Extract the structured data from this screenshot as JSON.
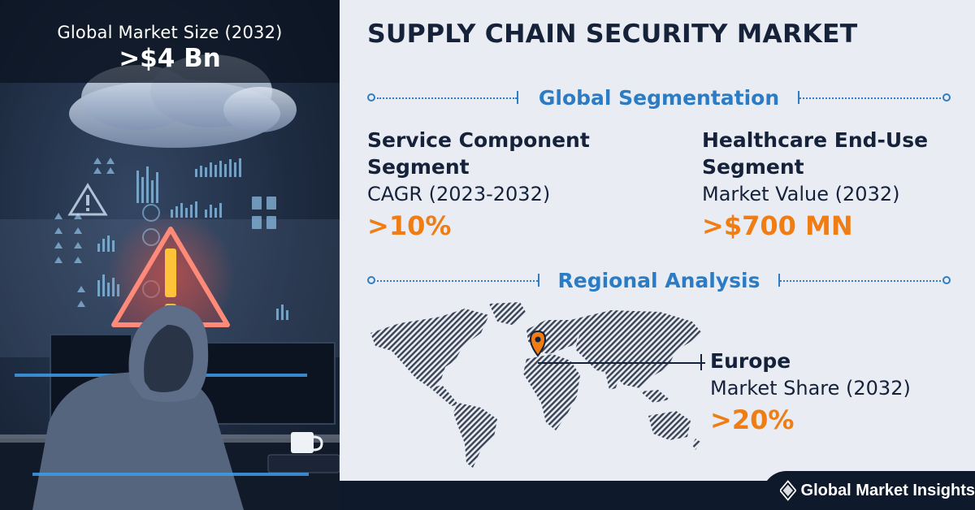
{
  "hero": {
    "label": "Global Market Size (2032)",
    "value": ">$4 Bn"
  },
  "title": "SUPPLY CHAIN SECURITY MARKET",
  "segmentation": {
    "heading": "Global Segmentation",
    "left": {
      "line1": "Service Component",
      "line2": "Segment",
      "metric": "CAGR (2023-2032)",
      "value": ">10%"
    },
    "right": {
      "line1": "Healthcare End-Use",
      "line2": "Segment",
      "metric": "Market Value (2032)",
      "value": ">$700 MN"
    }
  },
  "regional": {
    "heading": "Regional Analysis",
    "region": "Europe",
    "metric": "Market Share (2032)",
    "value": ">20%"
  },
  "brand": {
    "name": "Global Market Insights",
    "logo_icon": "gmi-diamond-logo-icon"
  },
  "colors": {
    "accent_blue": "#2b7cc4",
    "accent_orange": "#f07c14",
    "navy": "#15223a",
    "background": "#e9edf3"
  }
}
